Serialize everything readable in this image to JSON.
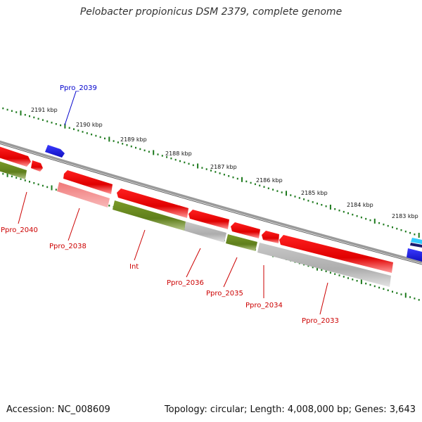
{
  "title": "Pelobacter propionicus DSM 2379, complete genome",
  "footer": {
    "accession": "Accession: NC_008609",
    "summary": "Topology: circular; Length: 4,008,000 bp; Genes: 3,643"
  },
  "colors": {
    "backbone": "#888888",
    "tick": "#1e7a1e",
    "forward_gene": "#e8000b",
    "reverse_gene": "#ee0000",
    "pseudo": "#f08080",
    "green_track": "#6b8e23",
    "gray_track": "#bdbdbd",
    "blue_gene": "#1a1aee",
    "label_red": "#cc0000",
    "label_blue": "#0000cc"
  },
  "ticks": [
    {
      "label": "2191 kbp"
    },
    {
      "label": "2190 kbp"
    },
    {
      "label": "2189 kbp"
    },
    {
      "label": "2188 kbp"
    },
    {
      "label": "2187 kbp"
    },
    {
      "label": "2186 kbp"
    },
    {
      "label": "2185 kbp"
    },
    {
      "label": "2184 kbp"
    },
    {
      "label": "2183 kbp"
    }
  ],
  "gene_labels": [
    {
      "text": "Ppro_2039",
      "color": "blue"
    },
    {
      "text": "Ppro_2040",
      "color": "red"
    },
    {
      "text": "Ppro_2038",
      "color": "red"
    },
    {
      "text": "Int",
      "color": "red"
    },
    {
      "text": "Ppro_2036",
      "color": "red"
    },
    {
      "text": "Ppro_2035",
      "color": "red"
    },
    {
      "text": "Ppro_2034",
      "color": "red"
    },
    {
      "text": "Ppro_2033",
      "color": "red"
    }
  ]
}
